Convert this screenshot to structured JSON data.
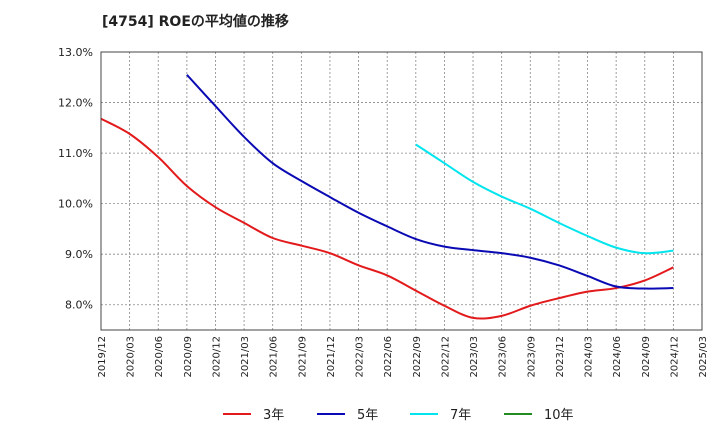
{
  "chart_data": {
    "type": "line",
    "title": "[4754]  ROEの平均値の推移",
    "xlabel": "",
    "ylabel": "",
    "ylim": [
      7.5,
      13.0
    ],
    "y_ticks": [
      "8.0%",
      "9.0%",
      "10.0%",
      "11.0%",
      "12.0%",
      "13.0%"
    ],
    "y_tick_values": [
      8.0,
      9.0,
      10.0,
      11.0,
      12.0,
      13.0
    ],
    "x_ticks": [
      "2019/12",
      "2020/03",
      "2020/06",
      "2020/09",
      "2020/12",
      "2021/03",
      "2021/06",
      "2021/09",
      "2021/12",
      "2022/03",
      "2022/06",
      "2022/09",
      "2022/12",
      "2023/03",
      "2023/06",
      "2023/09",
      "2023/12",
      "2024/03",
      "2024/06",
      "2024/09",
      "2024/12",
      "2025/03"
    ],
    "grid": true,
    "legend_position": "bottom",
    "series": [
      {
        "name": "3年",
        "color": "#e31a1c",
        "x": [
          "2019/12",
          "2020/03",
          "2020/06",
          "2020/09",
          "2020/12",
          "2021/03",
          "2021/06",
          "2021/09",
          "2021/12",
          "2022/03",
          "2022/06",
          "2022/09",
          "2022/12",
          "2023/03",
          "2023/06",
          "2023/09",
          "2023/12",
          "2024/03",
          "2024/06",
          "2024/09",
          "2024/12"
        ],
        "values": [
          11.68,
          11.38,
          10.92,
          10.35,
          9.93,
          9.62,
          9.32,
          9.17,
          9.02,
          8.78,
          8.58,
          8.28,
          7.98,
          7.74,
          7.78,
          7.98,
          8.13,
          8.26,
          8.33,
          8.48,
          8.74
        ]
      },
      {
        "name": "5年",
        "color": "#0a0ab4",
        "x": [
          "2020/09",
          "2020/12",
          "2021/03",
          "2021/06",
          "2021/09",
          "2021/12",
          "2022/03",
          "2022/06",
          "2022/09",
          "2022/12",
          "2023/03",
          "2023/06",
          "2023/09",
          "2023/12",
          "2024/03",
          "2024/06",
          "2024/09",
          "2024/12"
        ],
        "values": [
          12.55,
          11.93,
          11.32,
          10.8,
          10.45,
          10.13,
          9.82,
          9.55,
          9.3,
          9.15,
          9.08,
          9.02,
          8.93,
          8.78,
          8.57,
          8.36,
          8.32,
          8.33
        ]
      },
      {
        "name": "7年",
        "color": "#00e5ee",
        "x": [
          "2022/09",
          "2022/12",
          "2023/03",
          "2023/06",
          "2023/09",
          "2023/12",
          "2024/03",
          "2024/06",
          "2024/09",
          "2024/12"
        ],
        "values": [
          11.17,
          10.8,
          10.43,
          10.14,
          9.9,
          9.62,
          9.36,
          9.13,
          9.02,
          9.07
        ]
      },
      {
        "name": "10年",
        "color": "#228b22",
        "x": [],
        "values": []
      }
    ]
  }
}
